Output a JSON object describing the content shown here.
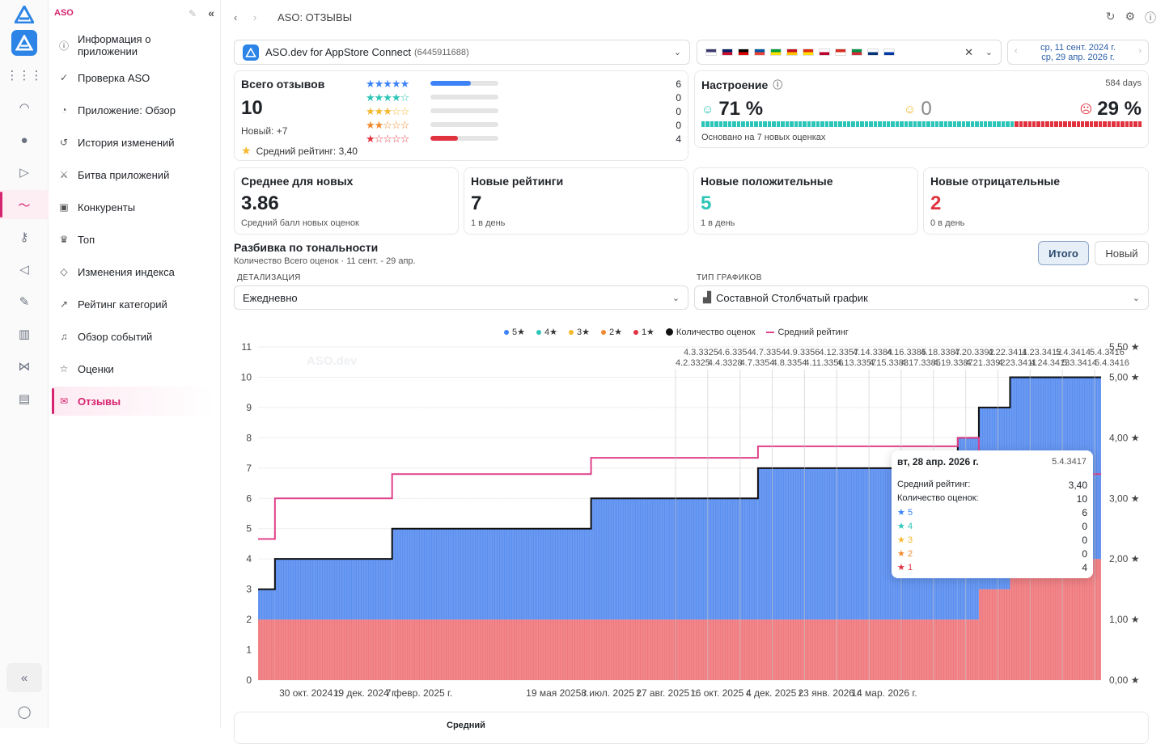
{
  "sidebar": {
    "app_label": "ASO",
    "items": [
      {
        "label": "Информация о приложении",
        "icon": "info-icon"
      },
      {
        "label": "Проверка ASO",
        "icon": "check-circle-icon"
      },
      {
        "label": "Приложение: Обзор",
        "icon": "pie-icon"
      },
      {
        "label": "История изменений",
        "icon": "history-icon"
      },
      {
        "label": "Битва приложений",
        "icon": "battle-icon"
      },
      {
        "label": "Конкуренты",
        "icon": "competitors-icon"
      },
      {
        "label": "Топ",
        "icon": "trophy-icon"
      },
      {
        "label": "Изменения индекса",
        "icon": "index-icon"
      },
      {
        "label": "Рейтинг категорий",
        "icon": "chart-line-icon"
      },
      {
        "label": "Обзор событий",
        "icon": "bell-icon"
      },
      {
        "label": "Оценки",
        "icon": "star-icon"
      },
      {
        "label": "Отзывы",
        "icon": "reviews-icon",
        "active": true
      }
    ]
  },
  "topbar": {
    "title": "ASO: ОТЗЫВЫ"
  },
  "app_select": {
    "name": "ASO.dev for AppStore Connect",
    "id": "(6445911688)"
  },
  "date_range": {
    "from": "ср, 11 сент. 2024 г.",
    "to": "ср, 29 апр. 2026 г."
  },
  "reviews_total": {
    "title": "Всего отзывов",
    "value": "10",
    "new_label": "Новый: +7",
    "avg_label": "Средний рейтинг: 3,40",
    "breakdown": [
      {
        "stars": 5,
        "count": "6",
        "fraction": 0.6,
        "color": "#3b82f6"
      },
      {
        "stars": 4,
        "count": "0",
        "fraction": 0,
        "color": "#2cc5b8"
      },
      {
        "stars": 3,
        "count": "0",
        "fraction": 0,
        "color": "#f5b82e"
      },
      {
        "stars": 2,
        "count": "0",
        "fraction": 0,
        "color": "#f08a2e"
      },
      {
        "stars": 1,
        "count": "4",
        "fraction": 0.4,
        "color": "#e0323f"
      }
    ]
  },
  "mood": {
    "title": "Настроение",
    "days": "584 days",
    "positive": "71 %",
    "neutral": "0",
    "negative": "29 %",
    "positive_fraction": 0.71,
    "note": "Основано на 7 новых оценках"
  },
  "kpis": [
    {
      "title": "Среднее для новых",
      "value": "3.86",
      "sub": "Средний балл новых оценок",
      "color": "#1f2328"
    },
    {
      "title": "Новые рейтинги",
      "value": "7",
      "sub": "1 в день",
      "color": "#1f2328"
    },
    {
      "title": "Новые положительные",
      "value": "5",
      "sub": "1 в день",
      "color": "#2cc5b8"
    },
    {
      "title": "Новые отрицательные",
      "value": "2",
      "sub": "0 в день",
      "color": "#e0323f"
    }
  ],
  "breakdown_section": {
    "title": "Разбивка по тональности",
    "subtitle": "Количество Всего оценок · 11 сент. - 29 апр.",
    "btn_total": "Итого",
    "btn_new": "Новый",
    "detail_label": "ДЕТАЛИЗАЦИЯ",
    "detail_value": "Ежедневно",
    "type_label": "ТИП ГРАФИКОВ",
    "type_value": "Составной Столбчатый график"
  },
  "legend": [
    "5★",
    "4★",
    "3★",
    "2★",
    "1★",
    "Количество оценок",
    "Средний рейтинг"
  ],
  "chart_data": {
    "type": "bar",
    "watermark": "ASO.dev",
    "x_ticks": [
      "30 окт. 2024 г.",
      "19 дек. 2024 г.",
      "7 февр. 2025 г.",
      "19 мая 2025 г.",
      "8 июл. 2025 г.",
      "27 авг. 2025 г.",
      "16 окт. 2025 г.",
      "4 дек. 2025 г.",
      "23 янв. 2026 г.",
      "14 мар. 2026 г."
    ],
    "y_left": {
      "min": 0,
      "max": 11,
      "ticks": [
        "0",
        "1",
        "2",
        "3",
        "4",
        "5",
        "6",
        "7",
        "8",
        "9",
        "10",
        "11"
      ]
    },
    "y_right": {
      "min": 0,
      "max": 5.5,
      "ticks": [
        "0,00 ★",
        "1,00 ★",
        "2,00 ★",
        "3,00 ★",
        "4,00 ★",
        "5,00 ★",
        "5,50 ★"
      ]
    },
    "steps": [
      {
        "t": 0,
        "five": 1,
        "one": 2,
        "avg": 2.33
      },
      {
        "t": 0.02,
        "five": 2,
        "one": 2,
        "avg": 3.0
      },
      {
        "t": 0.159,
        "five": 3,
        "one": 2,
        "avg": 3.4
      },
      {
        "t": 0.395,
        "five": 4,
        "one": 2,
        "avg": 3.67
      },
      {
        "t": 0.593,
        "five": 5,
        "one": 2,
        "avg": 3.86
      },
      {
        "t": 0.83,
        "five": 6,
        "one": 2,
        "avg": 4.0
      },
      {
        "t": 0.855,
        "five": 6,
        "one": 3,
        "avg": 3.67
      },
      {
        "t": 0.892,
        "five": 6,
        "one": 4,
        "avg": 3.4
      }
    ],
    "version_labels_top": [
      "4.3.3325",
      "4.6.3354",
      "4.7.3354",
      "4.9.3356",
      "4.12.3357",
      "4.14.3384",
      "4.16.3385",
      "4.18.3387",
      "4.20.3392",
      "4.22.3411",
      "4.23.3412",
      "5.4.3414",
      "5.4.3416"
    ],
    "version_labels_bottom": [
      "4.2.3325",
      "4.4.3328",
      "4.7.3354",
      "4.8.3354",
      "4.11.3356",
      "4.13.3357",
      "4.15.3383",
      "4.17.3385",
      "4.19.3387",
      "4.21.3392",
      "4.23.3411",
      "4.24.3413",
      "5.3.3414",
      "5.4.3416"
    ]
  },
  "tooltip": {
    "date": "вт, 28 апр. 2026 г.",
    "version": "5.4.3417",
    "avg_label": "Средний рейтинг:",
    "avg_value": "3,40",
    "count_label": "Количество оценок:",
    "count_value": "10",
    "rows": [
      {
        "label": "5",
        "value": "6",
        "color": "#3b82f6"
      },
      {
        "label": "4",
        "value": "0",
        "color": "#2cc5b8"
      },
      {
        "label": "3",
        "value": "0",
        "color": "#f5b82e"
      },
      {
        "label": "2",
        "value": "0",
        "color": "#f08a2e"
      },
      {
        "label": "1",
        "value": "4",
        "color": "#e0323f"
      }
    ]
  },
  "bottom_card": {
    "label": "Средний"
  }
}
